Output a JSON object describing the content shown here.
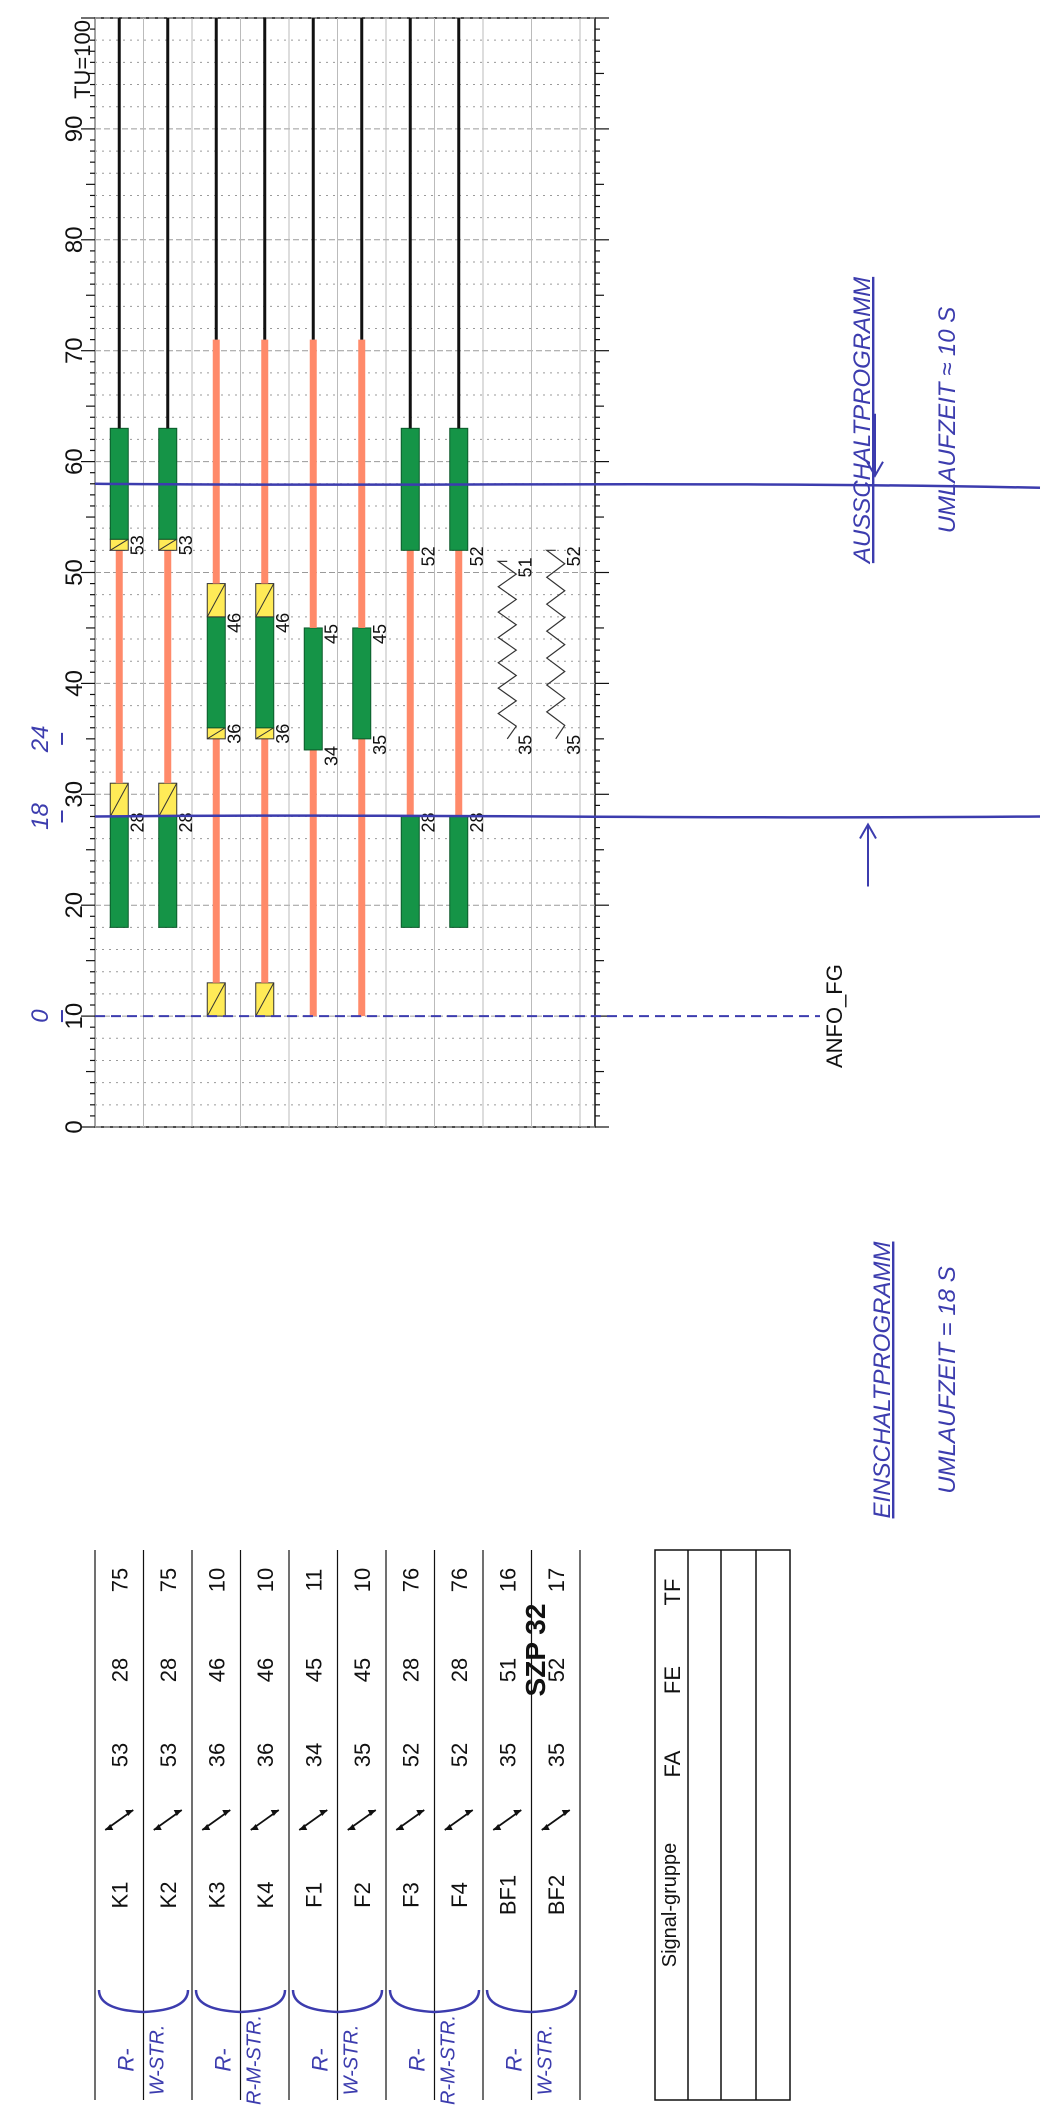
{
  "title": "SZP 32",
  "tu_label": "TU=100",
  "scale": {
    "min": 0,
    "max": 100,
    "major_step": 10
  },
  "columns": {
    "group": "Signal-gruppe",
    "fa": "FA",
    "fe": "FE",
    "tf": "TF"
  },
  "colors": {
    "green": "#159447",
    "red": "#ff8a6a",
    "yellow": "#ffeb57",
    "black": "#111111",
    "pen": "#3c3cae"
  },
  "rows": [
    {
      "name": "K1",
      "fa": "53",
      "fe": "28",
      "tf": "75",
      "bars": [
        {
          "type": "green",
          "from": 18,
          "to": 28
        },
        {
          "type": "yellow",
          "from": 28,
          "to": 31
        },
        {
          "type": "red",
          "from": 31,
          "to": 52
        },
        {
          "type": "yellow",
          "from": 52,
          "to": 53
        },
        {
          "type": "green",
          "from": 53,
          "to": 63
        },
        {
          "type": "black",
          "from": 63,
          "to": 100
        }
      ],
      "labels": [
        {
          "t": 28,
          "text": "28"
        },
        {
          "t": 53,
          "text": "53"
        }
      ]
    },
    {
      "name": "K2",
      "fa": "53",
      "fe": "28",
      "tf": "75",
      "bars": [
        {
          "type": "green",
          "from": 18,
          "to": 28
        },
        {
          "type": "yellow",
          "from": 28,
          "to": 31
        },
        {
          "type": "red",
          "from": 31,
          "to": 52
        },
        {
          "type": "yellow",
          "from": 52,
          "to": 53
        },
        {
          "type": "green",
          "from": 53,
          "to": 63
        },
        {
          "type": "black",
          "from": 63,
          "to": 100
        }
      ],
      "labels": [
        {
          "t": 28,
          "text": "28"
        },
        {
          "t": 53,
          "text": "53"
        }
      ]
    },
    {
      "name": "K3",
      "fa": "36",
      "fe": "46",
      "tf": "10",
      "bars": [
        {
          "type": "yellow",
          "from": 10,
          "to": 13
        },
        {
          "type": "red",
          "from": 13,
          "to": 35
        },
        {
          "type": "yellow",
          "from": 35,
          "to": 36
        },
        {
          "type": "green",
          "from": 36,
          "to": 46
        },
        {
          "type": "yellow",
          "from": 46,
          "to": 49
        },
        {
          "type": "red",
          "from": 49,
          "to": 71
        },
        {
          "type": "black",
          "from": 71,
          "to": 100
        }
      ],
      "labels": [
        {
          "t": 36,
          "text": "36"
        },
        {
          "t": 46,
          "text": "46"
        }
      ]
    },
    {
      "name": "K4",
      "fa": "36",
      "fe": "46",
      "tf": "10",
      "bars": [
        {
          "type": "yellow",
          "from": 10,
          "to": 13
        },
        {
          "type": "red",
          "from": 13,
          "to": 35
        },
        {
          "type": "yellow",
          "from": 35,
          "to": 36
        },
        {
          "type": "green",
          "from": 36,
          "to": 46
        },
        {
          "type": "yellow",
          "from": 46,
          "to": 49
        },
        {
          "type": "red",
          "from": 49,
          "to": 71
        },
        {
          "type": "black",
          "from": 71,
          "to": 100
        }
      ],
      "labels": [
        {
          "t": 36,
          "text": "36"
        },
        {
          "t": 46,
          "text": "46"
        }
      ]
    },
    {
      "name": "F1",
      "fa": "34",
      "fe": "45",
      "tf": "11",
      "bars": [
        {
          "type": "red",
          "from": 10,
          "to": 34
        },
        {
          "type": "green",
          "from": 34,
          "to": 45
        },
        {
          "type": "red",
          "from": 45,
          "to": 71
        },
        {
          "type": "black",
          "from": 71,
          "to": 100
        }
      ],
      "labels": [
        {
          "t": 34,
          "text": "34"
        },
        {
          "t": 45,
          "text": "45"
        }
      ]
    },
    {
      "name": "F2",
      "fa": "35",
      "fe": "45",
      "tf": "10",
      "bars": [
        {
          "type": "red",
          "from": 10,
          "to": 35
        },
        {
          "type": "green",
          "from": 35,
          "to": 45
        },
        {
          "type": "red",
          "from": 45,
          "to": 71
        },
        {
          "type": "black",
          "from": 71,
          "to": 100
        }
      ],
      "labels": [
        {
          "t": 35,
          "text": "35"
        },
        {
          "t": 45,
          "text": "45"
        }
      ]
    },
    {
      "name": "F3",
      "fa": "52",
      "fe": "28",
      "tf": "76",
      "bars": [
        {
          "type": "green",
          "from": 18,
          "to": 28
        },
        {
          "type": "red",
          "from": 28,
          "to": 52
        },
        {
          "type": "green",
          "from": 52,
          "to": 63
        },
        {
          "type": "black",
          "from": 63,
          "to": 100
        }
      ],
      "labels": [
        {
          "t": 28,
          "text": "28"
        },
        {
          "t": 52,
          "text": "52"
        }
      ]
    },
    {
      "name": "F4",
      "fa": "52",
      "fe": "28",
      "tf": "76",
      "bars": [
        {
          "type": "green",
          "from": 18,
          "to": 28
        },
        {
          "type": "red",
          "from": 28,
          "to": 52
        },
        {
          "type": "green",
          "from": 52,
          "to": 63
        },
        {
          "type": "black",
          "from": 63,
          "to": 100
        }
      ],
      "labels": [
        {
          "t": 28,
          "text": "28"
        },
        {
          "t": 52,
          "text": "52"
        }
      ]
    },
    {
      "name": "BF1",
      "fa": "35",
      "fe": "51",
      "tf": "16",
      "bars": [
        {
          "type": "zigzag",
          "from": 35,
          "to": 51
        }
      ],
      "labels": [
        {
          "t": 35,
          "text": "35"
        },
        {
          "t": 51,
          "text": "51"
        }
      ]
    },
    {
      "name": "BF2",
      "fa": "35",
      "fe": "52",
      "tf": "17",
      "bars": [
        {
          "type": "zigzag",
          "from": 35,
          "to": 52
        }
      ],
      "labels": [
        {
          "t": 35,
          "text": "35"
        },
        {
          "t": 52,
          "text": "52"
        }
      ]
    }
  ],
  "anfo_label": "ANFO_FG",
  "markers": [
    {
      "t": 10,
      "label": "0"
    },
    {
      "t": 28,
      "label": "18"
    },
    {
      "t": 35,
      "label": "24"
    }
  ],
  "handwritten": {
    "einschalt_title": "EINSCHALTPROGRAMM",
    "einschalt_time": "UMLAUFZEIT = 18 S",
    "ausschalt_title": "AUSSCHALTPROGRAMM",
    "ausschalt_time": "UMLAUFZEIT ≈ 10 S",
    "groups": [
      {
        "line1": "R-",
        "line2": "W-STR."
      },
      {
        "line1": "R-",
        "line2": "R-M-STR."
      },
      {
        "line1": "R-",
        "line2": "W-STR."
      },
      {
        "line1": "R-",
        "line2": "R-M-STR."
      },
      {
        "line1": "R-",
        "line2": "W-STR."
      }
    ]
  }
}
